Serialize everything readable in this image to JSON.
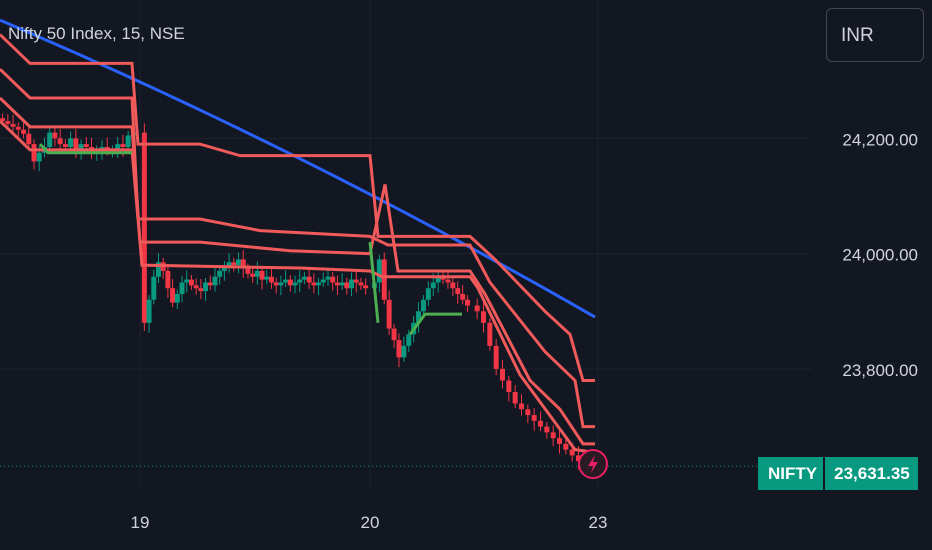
{
  "header": {
    "title": "Nifty 50 Index, 15, NSE"
  },
  "currency": {
    "label": "INR"
  },
  "price_badge": {
    "symbol": "NIFTY",
    "price": "23,631.35"
  },
  "colors": {
    "background": "#131722",
    "grid": "#1e222d",
    "text": "#d1d4dc",
    "up": "#089981",
    "down": "#f23645",
    "ema_line": "#2962ff",
    "trail_lines": "#f05a5a",
    "trail_low_green": "#4caf50",
    "price_line": "#089981",
    "marker": "#e91e63"
  },
  "chart_data": {
    "type": "candlestick",
    "title": "Nifty 50 Index, 15, NSE",
    "x_tick_labels": [
      {
        "label": "19",
        "day": 1
      },
      {
        "label": "20",
        "day": 2
      },
      {
        "label": "23",
        "day": 3
      }
    ],
    "y_tick_labels": [
      {
        "label": "24,200.00",
        "value": 24200
      },
      {
        "label": "24,000.00",
        "value": 24000
      },
      {
        "label": "23,800.00",
        "value": 23800
      }
    ],
    "ylim": [
      23590,
      24440
    ],
    "grid": true,
    "last_price": 23631.35,
    "candles_closes": [
      24230,
      24225,
      24220,
      24215,
      24208,
      24190,
      24160,
      24175,
      24185,
      24210,
      24200,
      24190,
      24185,
      24200,
      24180,
      24190,
      24185,
      24175,
      24180,
      24185,
      24178,
      24180,
      24190,
      24185,
      24205,
      24210,
      23880,
      23920,
      23960,
      23985,
      23970,
      23940,
      23915,
      23930,
      23950,
      23955,
      23945,
      23940,
      23935,
      23950,
      23945,
      23960,
      23970,
      23975,
      23985,
      23980,
      23990,
      23975,
      23965,
      23960,
      23970,
      23955,
      23960,
      23950,
      23945,
      23950,
      23955,
      23945,
      23950,
      23955,
      23960,
      23950,
      23945,
      23950,
      23955,
      23960,
      23950,
      23945,
      23950,
      23940,
      23955,
      23950,
      23945,
      23940,
      23950,
      23990,
      23920,
      23870,
      23850,
      23820,
      23840,
      23860,
      23880,
      23900,
      23920,
      23940,
      23950,
      23960,
      23955,
      23950,
      23940,
      23930,
      23920,
      23910,
      23900,
      23880,
      23840,
      23800,
      23780,
      23760,
      23740,
      23730,
      23720,
      23710,
      23700,
      23690,
      23680,
      23670,
      23660,
      23650,
      23640,
      23631.35
    ],
    "ema_line": {
      "start": 24405,
      "end": 23890
    },
    "trail_series": [
      "upper-3",
      "upper-2",
      "upper-1",
      "base"
    ]
  }
}
